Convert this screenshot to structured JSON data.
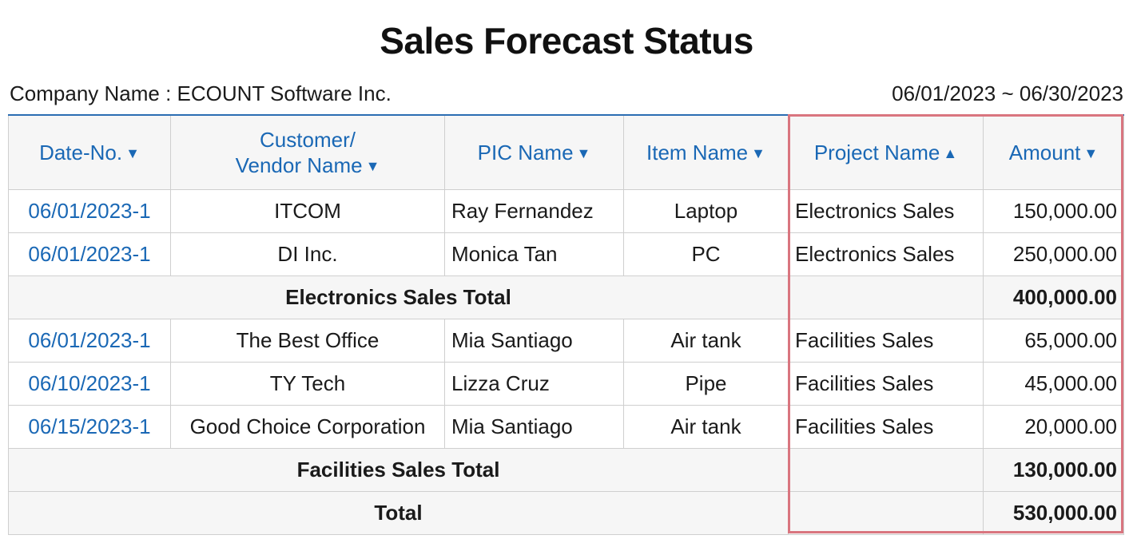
{
  "report": {
    "title": "Sales Forecast Status",
    "company_label": "Company Name : ECOUNT Software Inc.",
    "date_range": "06/01/2023 ~ 06/30/2023"
  },
  "columns": [
    {
      "label": "Date-No.",
      "sort": "desc"
    },
    {
      "label": "Customer/",
      "label2": "Vendor Name",
      "sort": "desc"
    },
    {
      "label": "PIC Name",
      "sort": "desc"
    },
    {
      "label": "Item Name",
      "sort": "desc"
    },
    {
      "label": "Project Name",
      "sort": "asc"
    },
    {
      "label": "Amount",
      "sort": "desc"
    }
  ],
  "sort_icons": {
    "desc": "▼",
    "asc": "▲"
  },
  "rows": [
    {
      "date": "06/01/2023-1",
      "customer": "ITCOM",
      "pic": "Ray Fernandez",
      "item": "Laptop",
      "project": "Electronics Sales",
      "amount": "150,000.00"
    },
    {
      "date": "06/01/2023-1",
      "customer": "DI Inc.",
      "pic": "Monica Tan",
      "item": "PC",
      "project": "Electronics Sales",
      "amount": "250,000.00"
    },
    {
      "subtotal_label": "Electronics Sales Total",
      "amount": "400,000.00"
    },
    {
      "date": "06/01/2023-1",
      "customer": "The Best Office",
      "pic": "Mia Santiago",
      "item": "Air tank",
      "project": "Facilities Sales",
      "amount": "65,000.00"
    },
    {
      "date": "06/10/2023-1",
      "customer": "TY Tech",
      "pic": "Lizza Cruz",
      "item": "Pipe",
      "project": "Facilities Sales",
      "amount": "45,000.00"
    },
    {
      "date": "06/15/2023-1",
      "customer": "Good Choice Corporation",
      "pic": "Mia Santiago",
      "item": "Air tank",
      "project": "Facilities Sales",
      "amount": "20,000.00"
    },
    {
      "subtotal_label": "Facilities Sales Total",
      "amount": "130,000.00"
    },
    {
      "subtotal_label": "Total",
      "amount": "530,000.00"
    }
  ],
  "colors": {
    "header_text": "#1a68b5",
    "date_link": "#1a68b5",
    "highlight_border": "#d9757f",
    "top_rule": "#2b6db3"
  }
}
